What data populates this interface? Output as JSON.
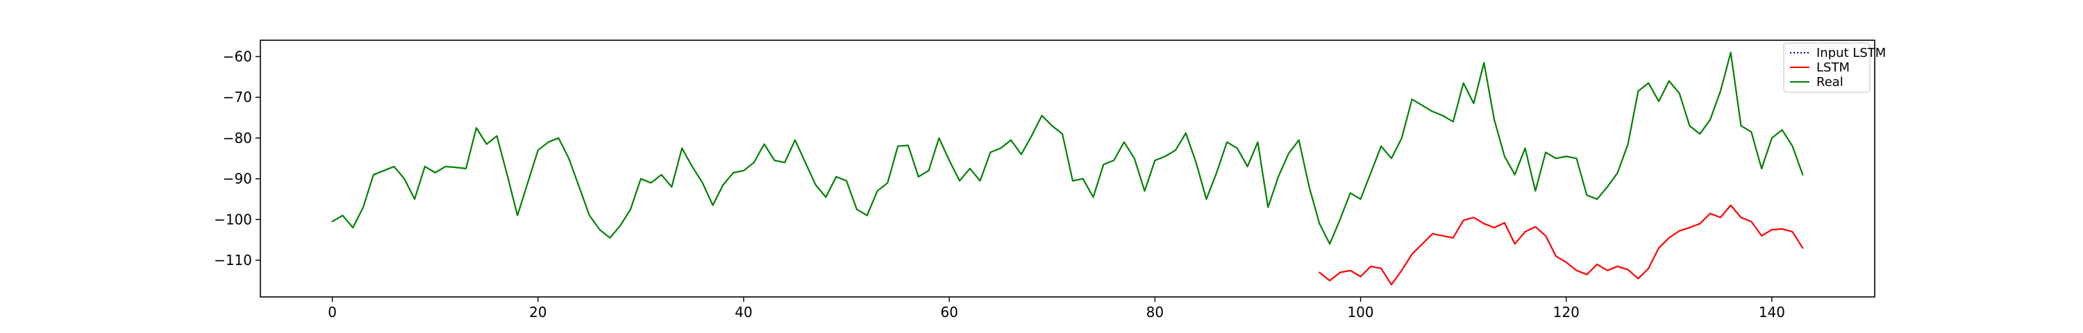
{
  "chart_data": {
    "type": "line",
    "title": "",
    "xlabel": "",
    "ylabel": "",
    "xlim": [
      -7,
      150
    ],
    "ylim": [
      -119,
      -56
    ],
    "xticks": [
      0,
      20,
      40,
      60,
      80,
      100,
      120,
      140
    ],
    "yticks": [
      -110,
      -100,
      -90,
      -80,
      -70,
      -60
    ],
    "grid": false,
    "legend_position": "top-right",
    "legend": [
      {
        "label": "Input LSTM",
        "color": "#00008b",
        "style": "dotted"
      },
      {
        "label": "LSTM",
        "color": "#ff0000",
        "style": "solid"
      },
      {
        "label": "Real",
        "color": "#008000",
        "style": "solid"
      }
    ],
    "series": [
      {
        "name": "Input LSTM",
        "color": "#00008b",
        "style": "dotted",
        "x_start": 0,
        "values": []
      },
      {
        "name": "Real",
        "color": "#008000",
        "style": "solid",
        "x_start": 0,
        "values": [
          -100.5,
          -99,
          -102,
          -97,
          -89,
          -88,
          -87,
          -90,
          -95,
          -87,
          -88.5,
          -87,
          -87.2,
          -87.5,
          -77.5,
          -81.5,
          -79.5,
          -89,
          -99,
          -91,
          -83,
          -81,
          -80,
          -85,
          -92,
          -99,
          -102.5,
          -104.5,
          -101.5,
          -97.5,
          -90,
          -91,
          -89,
          -92,
          -82.5,
          -87,
          -91,
          -96.5,
          -91.5,
          -88.5,
          -88,
          -86,
          -81.5,
          -85.5,
          -86,
          -80.5,
          -86,
          -91.5,
          -94.5,
          -89.5,
          -90.5,
          -97.5,
          -99,
          -93,
          -91,
          -82,
          -81.8,
          -89.5,
          -88,
          -80,
          -85.5,
          -90.5,
          -87.5,
          -90.5,
          -83.5,
          -82.5,
          -80.5,
          -84,
          -79.5,
          -74.5,
          -77,
          -79,
          -90.5,
          -90,
          -94.5,
          -86.5,
          -85.5,
          -81,
          -85,
          -93,
          -85.5,
          -84.5,
          -83,
          -78.8,
          -86,
          -95,
          -88.5,
          -81,
          -82.5,
          -87,
          -81,
          -97,
          -89.5,
          -83.8,
          -80.5,
          -92,
          -101,
          -106,
          -100,
          -93.5,
          -95,
          -88.5,
          -82,
          -85,
          -80,
          -70.5,
          -72,
          -73.5,
          -74.5,
          -76,
          -66.5,
          -71.5,
          -61.5,
          -75.5,
          -84.5,
          -89,
          -82.5,
          -93,
          -83.5,
          -85,
          -84.5,
          -85,
          -94,
          -95,
          -92,
          -88.5,
          -81.5,
          -68.5,
          -66.5,
          -71,
          -66,
          -69,
          -77,
          -79,
          -75.5,
          -68.5,
          -59,
          -77,
          -78.5,
          -87.5,
          -80,
          -78,
          -82,
          -89
        ]
      },
      {
        "name": "LSTM",
        "color": "#ff0000",
        "style": "solid",
        "x_start": 96,
        "values": [
          -113,
          -115,
          -113,
          -112.5,
          -114,
          -111.5,
          -112,
          -116,
          -112.5,
          -108.5,
          -106,
          -103.5,
          -104,
          -104.5,
          -100.2,
          -99.5,
          -101,
          -102,
          -100.8,
          -106,
          -103,
          -101.8,
          -104,
          -109,
          -110.5,
          -112.5,
          -113.5,
          -111,
          -112.5,
          -111.5,
          -112.3,
          -114.5,
          -112,
          -107,
          -104.5,
          -102.8,
          -102,
          -101,
          -98.5,
          -99.5,
          -96.5,
          -99.5,
          -100.5,
          -104,
          -102.5,
          -102.3,
          -103,
          -107
        ]
      }
    ]
  }
}
